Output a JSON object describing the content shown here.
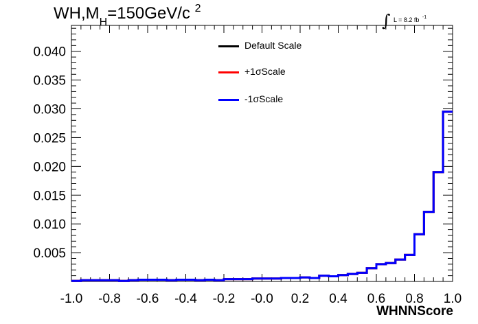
{
  "title": {
    "main": "WH,M",
    "sub": "H",
    "rest": "=150GeV/c",
    "sup": "2"
  },
  "lumi": {
    "integral": "∫",
    "label": "L = 8.2 fb",
    "sup": "-1"
  },
  "colors": {
    "default": "#000000",
    "plus": "#ff0000",
    "minus": "#0000ff",
    "axis": "#000000"
  },
  "chart_data": {
    "type": "line",
    "style": "step-histogram",
    "xlabel": "WHNNScore",
    "ylabel": "",
    "xlim": [
      -1.0,
      1.0
    ],
    "ylim": [
      0,
      0.0445
    ],
    "x_ticks": [
      "-1.0",
      "-0.8",
      "-0.6",
      "-0.4",
      "-0.2",
      "-0.0",
      "0.2",
      "0.4",
      "0.6",
      "0.8",
      "1.0"
    ],
    "y_ticks": [
      "0.005",
      "0.010",
      "0.015",
      "0.020",
      "0.025",
      "0.030",
      "0.035",
      "0.040"
    ],
    "bin_edges": [
      -1.0,
      -0.95,
      -0.9,
      -0.85,
      -0.8,
      -0.75,
      -0.7,
      -0.65,
      -0.6,
      -0.55,
      -0.5,
      -0.45,
      -0.4,
      -0.35,
      -0.3,
      -0.25,
      -0.2,
      -0.15,
      -0.1,
      -0.05,
      0.0,
      0.05,
      0.1,
      0.15,
      0.2,
      0.25,
      0.3,
      0.35,
      0.4,
      0.45,
      0.5,
      0.55,
      0.6,
      0.65,
      0.7,
      0.75,
      0.8,
      0.85,
      0.9,
      0.95,
      1.0
    ],
    "legend_position": "top-center",
    "series": [
      {
        "name": "Default Scale",
        "color": "#000000",
        "values": [
          0.0001,
          0.0002,
          0.0002,
          0.0002,
          0.0002,
          0.0001,
          0.0002,
          0.0003,
          0.0003,
          0.0003,
          0.0002,
          0.0003,
          0.0003,
          0.0002,
          0.0003,
          0.0002,
          0.0004,
          0.0004,
          0.0004,
          0.0005,
          0.0005,
          0.0005,
          0.0006,
          0.0006,
          0.0007,
          0.0006,
          0.001,
          0.0009,
          0.0011,
          0.0013,
          0.0015,
          0.0023,
          0.003,
          0.0032,
          0.0038,
          0.0046,
          0.0082,
          0.0121,
          0.019,
          0.0295
        ]
      },
      {
        "name": "+1σScale",
        "color": "#ff0000",
        "values": [
          0.0001,
          0.0002,
          0.0002,
          0.0002,
          0.0002,
          0.0001,
          0.0002,
          0.0003,
          0.0003,
          0.0003,
          0.0002,
          0.0003,
          0.0003,
          0.0002,
          0.0003,
          0.0002,
          0.0004,
          0.0004,
          0.0004,
          0.0005,
          0.0005,
          0.0005,
          0.0006,
          0.0006,
          0.0007,
          0.0006,
          0.001,
          0.0009,
          0.0011,
          0.0013,
          0.0015,
          0.0023,
          0.003,
          0.0032,
          0.0038,
          0.0046,
          0.0082,
          0.0121,
          0.019,
          0.0295
        ]
      },
      {
        "name": "-1σScale",
        "color": "#0000ff",
        "values": [
          0.0001,
          0.0002,
          0.0002,
          0.0002,
          0.0002,
          0.0001,
          0.0002,
          0.0003,
          0.0003,
          0.0003,
          0.0002,
          0.0003,
          0.0003,
          0.0002,
          0.0003,
          0.0002,
          0.0004,
          0.0004,
          0.0004,
          0.0005,
          0.0005,
          0.0005,
          0.0006,
          0.0006,
          0.0007,
          0.0006,
          0.001,
          0.0009,
          0.0011,
          0.0013,
          0.0015,
          0.0023,
          0.003,
          0.0032,
          0.0038,
          0.0046,
          0.0082,
          0.0121,
          0.019,
          0.0295
        ]
      }
    ]
  }
}
